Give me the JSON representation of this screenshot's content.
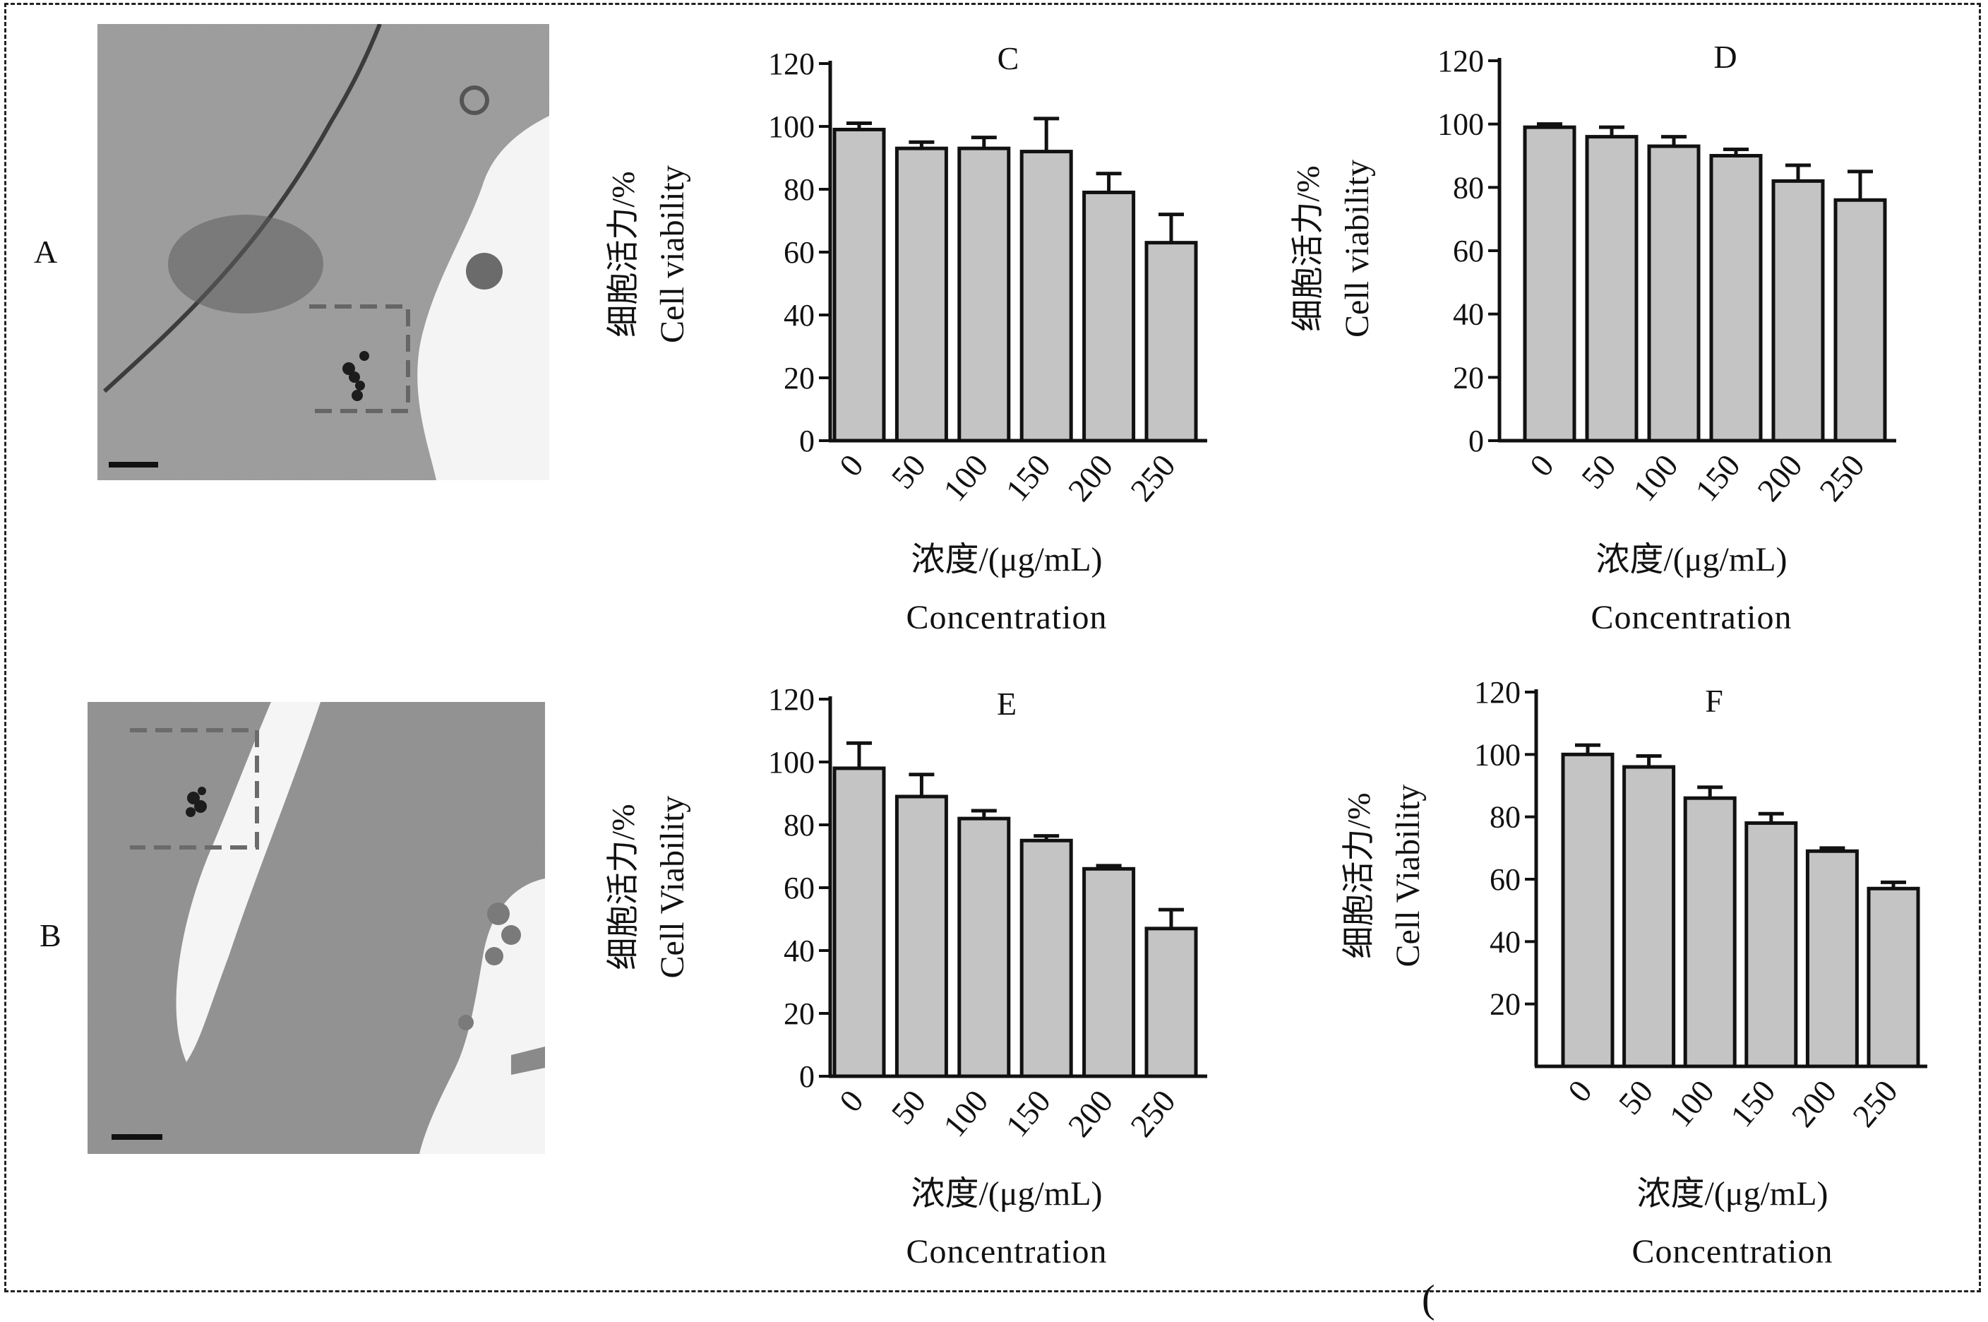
{
  "panels": {
    "A": {
      "label": "A"
    },
    "B": {
      "label": "B"
    }
  },
  "stray_text": "(",
  "chart_data": [
    {
      "id": "C",
      "type": "bar",
      "title": "C",
      "ylabel_cn": "细胞活力/%",
      "ylabel_en": "Cell viability",
      "xlabel_cn": "浓度/(μg/mL)",
      "xlabel_en": "Concentration",
      "categories": [
        "0",
        "50",
        "100",
        "150",
        "200",
        "250"
      ],
      "values": [
        99,
        93,
        93,
        92,
        79,
        63
      ],
      "errors": [
        2,
        2,
        3.5,
        10.5,
        6,
        9
      ],
      "ylim": [
        0,
        120
      ],
      "yticks": [
        "0",
        "20",
        "40",
        "60",
        "80",
        "100",
        "120"
      ]
    },
    {
      "id": "D",
      "type": "bar",
      "title": "D",
      "ylabel_cn": "细胞活力/%",
      "ylabel_en": "Cell viability",
      "xlabel_cn": "浓度/(μg/mL)",
      "xlabel_en": "Concentration",
      "categories": [
        "0",
        "50",
        "100",
        "150",
        "200",
        "250"
      ],
      "values": [
        99,
        96,
        93,
        90,
        82,
        76
      ],
      "errors": [
        1,
        3,
        3,
        2,
        5,
        9
      ],
      "ylim": [
        0,
        120
      ],
      "yticks": [
        "0",
        "20",
        "40",
        "60",
        "80",
        "100",
        "120"
      ]
    },
    {
      "id": "E",
      "type": "bar",
      "title": "E",
      "ylabel_cn": "细胞活力/%",
      "ylabel_en": "Cell Viability",
      "xlabel_cn": "浓度/(μg/mL)",
      "xlabel_en": "Concentration",
      "categories": [
        "0",
        "50",
        "100",
        "150",
        "200",
        "250"
      ],
      "values": [
        98,
        89,
        82,
        75,
        66,
        47
      ],
      "errors": [
        8,
        7,
        2.5,
        1.5,
        1,
        6
      ],
      "ylim": [
        0,
        120
      ],
      "yticks": [
        "0",
        "20",
        "40",
        "60",
        "80",
        "100",
        "120"
      ]
    },
    {
      "id": "F",
      "type": "bar",
      "title": "F",
      "ylabel_cn": "细胞活力/%",
      "ylabel_en": "Cell Viability",
      "xlabel_cn": "浓度/(μg/mL)",
      "xlabel_en": "Concentration",
      "categories": [
        "0",
        "50",
        "100",
        "150",
        "200",
        "250"
      ],
      "values": [
        100,
        96,
        86,
        78,
        69,
        57
      ],
      "errors": [
        3,
        3.5,
        3.5,
        3,
        1,
        2
      ],
      "ylim": [
        0,
        120
      ],
      "yticks": [
        "20",
        "40",
        "60",
        "80",
        "100",
        "120"
      ]
    }
  ]
}
